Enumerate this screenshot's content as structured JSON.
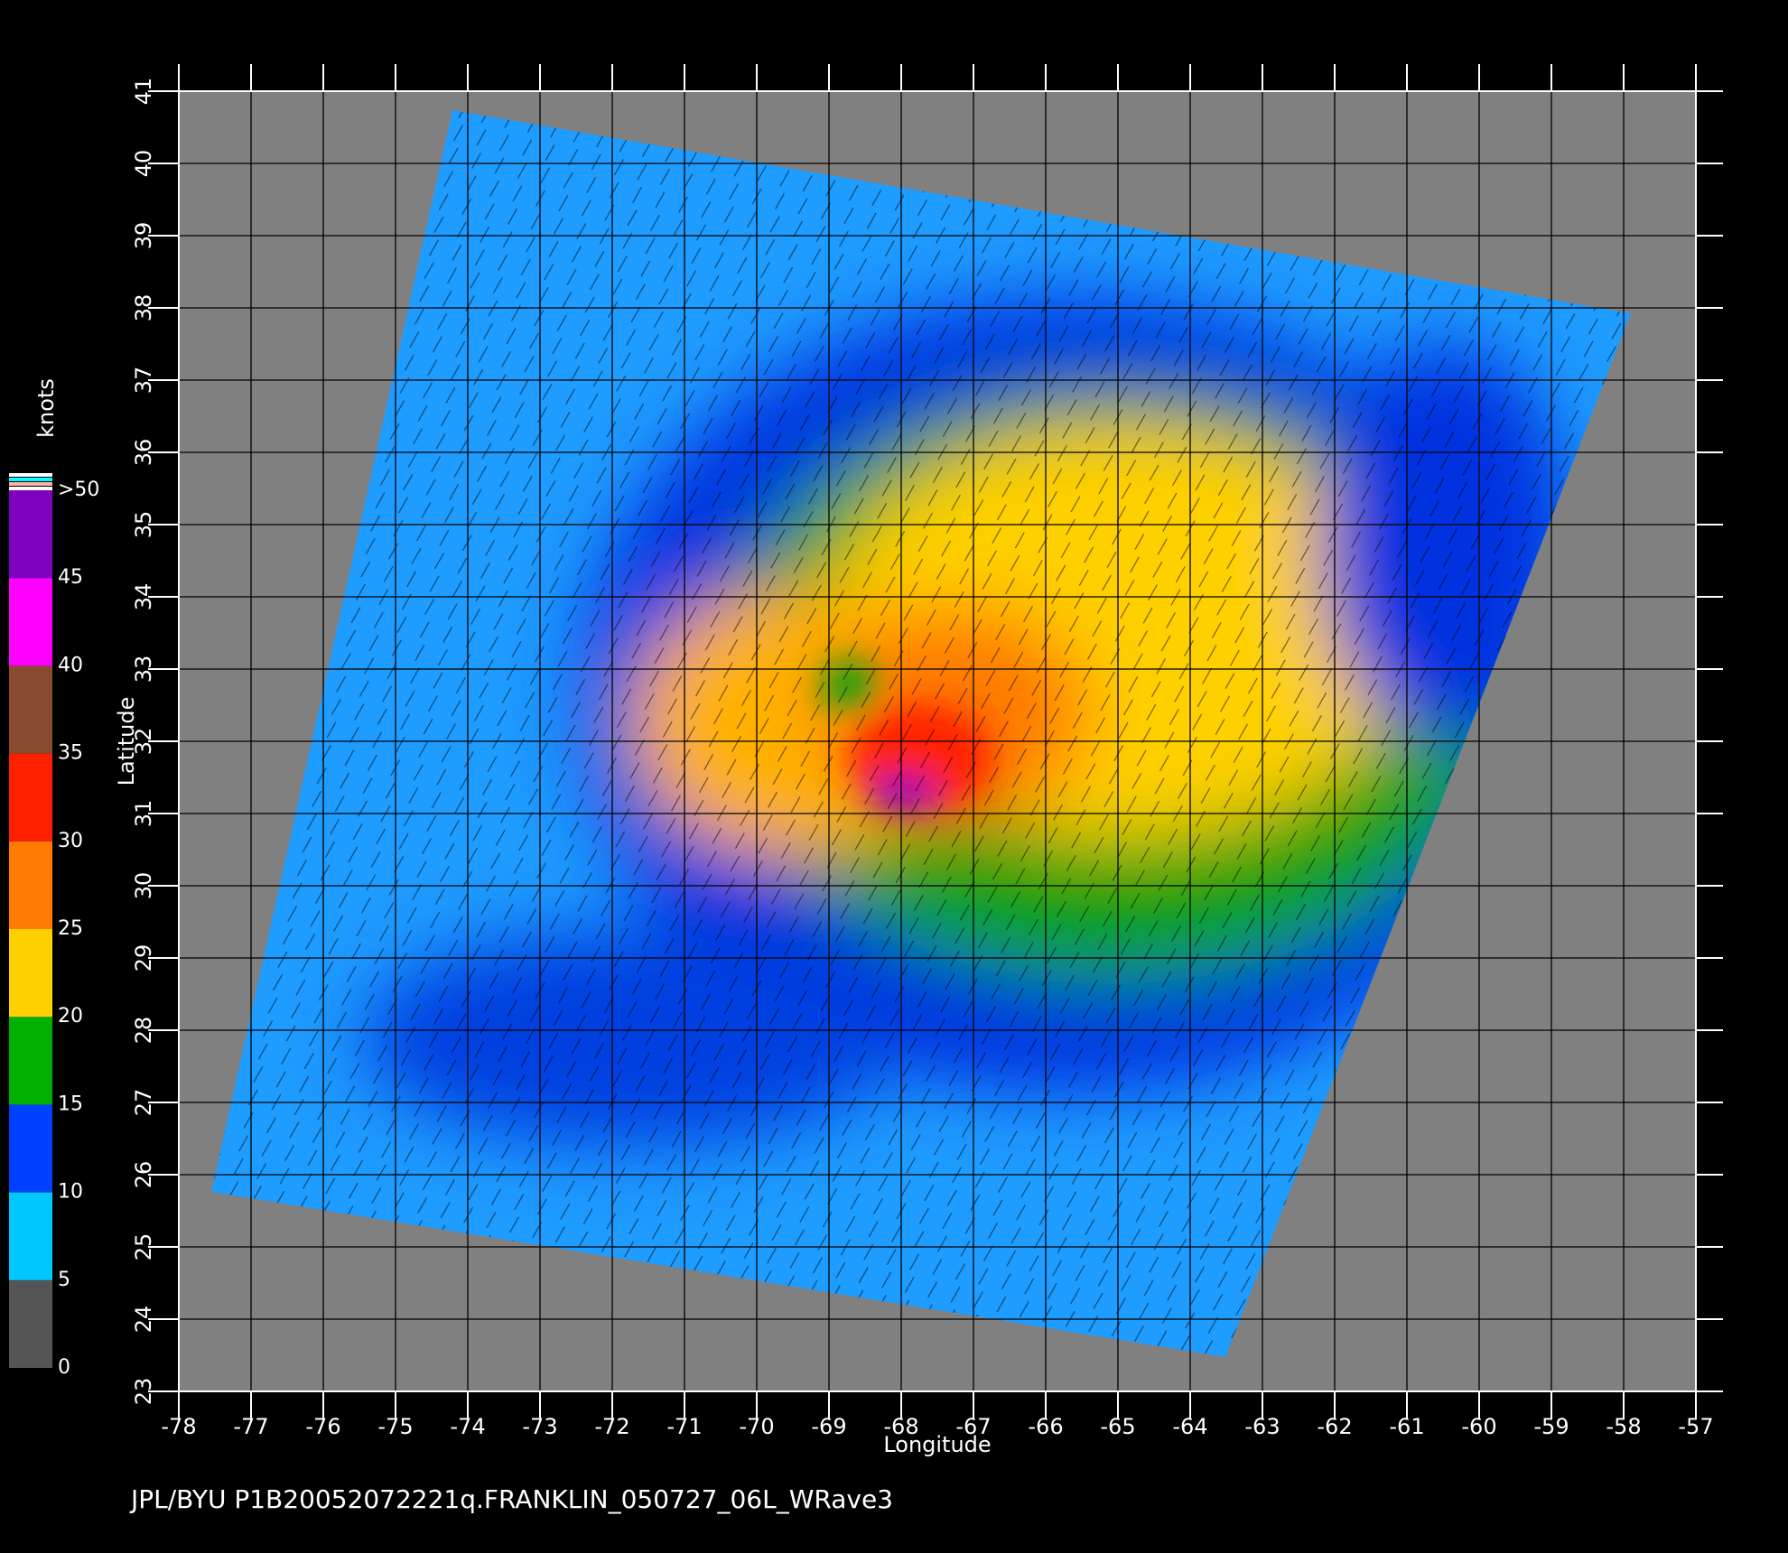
{
  "chart_data": {
    "type": "swath-map",
    "x_label": "Longitude",
    "y_label": "Latitude",
    "xlim": [
      -78,
      -57
    ],
    "xticks": [
      -78,
      -77,
      -76,
      -75,
      -74,
      -73,
      -72,
      -71,
      -70,
      -69,
      -68,
      -67,
      -66,
      -65,
      -64,
      -63,
      -62,
      -61,
      -60,
      -59,
      -58,
      -57
    ],
    "ylim": [
      23,
      41
    ],
    "yticks": [
      23,
      24,
      25,
      26,
      27,
      28,
      29,
      30,
      31,
      32,
      33,
      34,
      35,
      36,
      37,
      38,
      39,
      40,
      41
    ],
    "grid": true,
    "colorbar": {
      "label": "knots",
      "lim": [
        0,
        50
      ],
      "ticks": [
        0,
        5,
        10,
        15,
        20,
        25,
        30,
        35,
        40,
        45,
        {
          "value": 50,
          "label": ">50"
        }
      ],
      "colors": [
        "#555555",
        "#00c8ff",
        "#0040ff",
        "#00b000",
        "#ffd000",
        "#ff7a00",
        "#ff2000",
        "#8a4a30",
        "#ff00ff",
        "#8000c0"
      ]
    },
    "footer": "JPL/BYU  P1B20052072221q.FRANKLIN_050727_06L_WRave3"
  }
}
